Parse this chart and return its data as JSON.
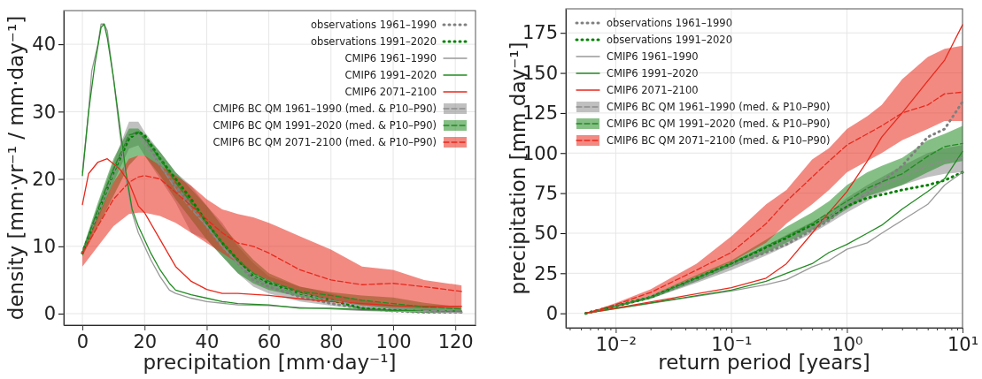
{
  "chart_data": [
    {
      "type": "line",
      "xlabel": "precipitation [mm·day⁻¹]",
      "ylabel": "density [mm·yr⁻¹ / mm·day⁻¹]",
      "xlim": [
        -6,
        126.5
      ],
      "ylim": [
        -1.7,
        45
      ],
      "xticks": [
        0,
        20,
        40,
        60,
        80,
        100,
        120
      ],
      "yticks": [
        0,
        10,
        20,
        30,
        40
      ],
      "grid": true,
      "legend": "top right",
      "series": [
        {
          "name": "observations 1961–1990",
          "color": "#808080",
          "line_style": "dotted",
          "x": [
            0,
            5,
            10,
            15,
            18,
            20,
            25,
            30,
            35,
            40,
            45,
            50,
            55,
            60,
            70,
            80,
            90,
            100,
            110,
            122
          ],
          "values": [
            9,
            15,
            21,
            26.5,
            27,
            26,
            22,
            19,
            16,
            13,
            10,
            7.5,
            5,
            4,
            2.5,
            1.5,
            0.8,
            0.4,
            0.2,
            0.2
          ]
        },
        {
          "name": "observations 1991–2020",
          "color": "#008000",
          "line_style": "dotted",
          "x": [
            0,
            5,
            10,
            15,
            18,
            20,
            25,
            30,
            35,
            40,
            45,
            50,
            55,
            60,
            70,
            80,
            90,
            100,
            110,
            122
          ],
          "values": [
            9,
            15,
            21,
            26,
            27,
            26.5,
            23,
            20,
            17,
            13.5,
            10.5,
            8,
            5.5,
            4.5,
            3,
            2,
            0.8,
            0.5,
            0.3,
            0.3
          ]
        },
        {
          "name": "CMIP6 1961–1990",
          "color": "#999999",
          "line_style": "solid",
          "x": [
            0,
            2,
            3,
            5,
            6,
            7,
            8,
            10,
            12,
            14,
            16,
            18,
            20,
            22,
            25,
            28,
            30,
            35,
            40,
            50,
            60,
            70,
            80,
            90,
            100,
            110,
            122
          ],
          "values": [
            21,
            30,
            36,
            40,
            43,
            43,
            42,
            35,
            27,
            20,
            15,
            12,
            10,
            8,
            5.5,
            3.5,
            3,
            2.3,
            1.8,
            1.3,
            1.2,
            0.9,
            0.7,
            0.5,
            0.4,
            0.3,
            0.2
          ]
        },
        {
          "name": "CMIP6 1991–2020",
          "color": "#228b22",
          "line_style": "solid",
          "x": [
            0,
            2,
            4,
            6,
            7,
            8,
            10,
            12,
            14,
            16,
            18,
            20,
            22,
            25,
            28,
            30,
            35,
            40,
            45,
            50,
            60,
            70,
            80,
            90,
            100,
            110,
            122
          ],
          "values": [
            20.5,
            30,
            37,
            42.5,
            43,
            41,
            35,
            28,
            21,
            15.5,
            13,
            11,
            9,
            6.5,
            4.5,
            3.5,
            2.8,
            2.3,
            1.8,
            1.5,
            1.3,
            0.8,
            0.8,
            0.6,
            0.5,
            0.5,
            0.4
          ]
        },
        {
          "name": "CMIP6 2071–2100",
          "color": "#e8291c",
          "line_style": "solid",
          "x": [
            0,
            2,
            5,
            8,
            12,
            15,
            18,
            20,
            25,
            30,
            35,
            40,
            45,
            50,
            60,
            70,
            80,
            90,
            100,
            110,
            122
          ],
          "values": [
            16.2,
            20.8,
            22.5,
            23,
            21.5,
            19.5,
            16,
            15,
            11,
            7,
            4.8,
            3.6,
            3,
            3,
            2.7,
            2.2,
            1.8,
            1.5,
            1.2,
            1.1,
            1.1
          ]
        },
        {
          "name": "CMIP6 BC QM 1961–1990 (med. & P10–P90)",
          "color": "#8c8c8c",
          "line_style": "dashed",
          "x": [
            0,
            5,
            10,
            15,
            18,
            20,
            25,
            30,
            35,
            40,
            45,
            50,
            55,
            60,
            70,
            80,
            90,
            100,
            110,
            122
          ],
          "values": [
            9,
            15,
            21,
            26.5,
            26.5,
            25,
            22,
            18.5,
            15.5,
            13,
            10,
            7.5,
            5.5,
            4.3,
            3,
            2,
            1.2,
            0.8,
            0.5,
            0.4
          ],
          "lower": [
            8.5,
            14,
            19.5,
            24.5,
            25,
            23.5,
            20,
            16.5,
            12,
            11,
            8.5,
            6,
            4,
            3,
            1.8,
            1.2,
            0.6,
            0.3,
            0.2,
            0.1
          ],
          "upper": [
            9.5,
            16,
            22.5,
            28.5,
            28.5,
            27,
            24,
            21,
            19,
            16,
            13.5,
            10,
            7.5,
            5.5,
            4,
            3,
            2,
            1.3,
            1,
            0.8
          ]
        },
        {
          "name": "CMIP6 BC QM 1991–2020 (med. & P10–P90)",
          "color": "#228b22",
          "line_style": "dashed",
          "x": [
            0,
            5,
            10,
            15,
            18,
            20,
            25,
            30,
            35,
            40,
            45,
            50,
            55,
            60,
            70,
            80,
            90,
            100,
            110,
            122
          ],
          "values": [
            9,
            15.5,
            21.5,
            26.5,
            27,
            26,
            23,
            19.5,
            16.5,
            13.5,
            10.5,
            8,
            6,
            4.8,
            3.3,
            2.7,
            2,
            1.5,
            1,
            0.7
          ],
          "lower": [
            8.5,
            13,
            17.5,
            22,
            23.5,
            23.5,
            20.5,
            17,
            14,
            11,
            8.5,
            6,
            4.5,
            3.5,
            2.5,
            1.8,
            1.2,
            0.7,
            0.4,
            0.3
          ],
          "upper": [
            9.5,
            16.5,
            23,
            27.5,
            27.5,
            26.5,
            24,
            21,
            18.5,
            16,
            13,
            10.5,
            8,
            6,
            4,
            3.2,
            2.7,
            2.4,
            1.6,
            1
          ]
        },
        {
          "name": "CMIP6 BC QM 2071–2100 (med. & P10–P90)",
          "color": "#e8291c",
          "line_style": "dashed",
          "x": [
            0,
            5,
            10,
            15,
            18,
            20,
            25,
            30,
            35,
            40,
            45,
            50,
            55,
            60,
            70,
            80,
            90,
            100,
            110,
            122
          ],
          "values": [
            9,
            13,
            17,
            19.5,
            20.3,
            20.5,
            20,
            18,
            16,
            14,
            12,
            10.5,
            10,
            9,
            6.5,
            5,
            4.3,
            4.5,
            4,
            3.3
          ],
          "lower": [
            7,
            10,
            13,
            14.8,
            15,
            15,
            14.5,
            13.5,
            12,
            10.5,
            9,
            7.5,
            6,
            5,
            3,
            2,
            1.3,
            1,
            0.8,
            0.8
          ],
          "upper": [
            9,
            14.5,
            19.5,
            23,
            23.5,
            23.5,
            22,
            20.5,
            19,
            17,
            15.5,
            14.8,
            14.3,
            13.5,
            11.5,
            9.5,
            7,
            6.5,
            5,
            4.2
          ]
        }
      ]
    },
    {
      "type": "line",
      "xlabel": "return period [years]",
      "ylabel": "precipitation [mm day⁻¹]",
      "log": "x",
      "xlim": [
        0.0037,
        10
      ],
      "ylim": [
        -9,
        190
      ],
      "xticks": [
        {
          "value": 0.004,
          "label": null
        },
        {
          "value": 0.005,
          "label": null
        },
        {
          "value": 0.006,
          "label": null
        },
        {
          "value": 0.007,
          "label": null
        },
        {
          "value": 0.008,
          "label": null
        },
        {
          "value": 0.009,
          "label": null
        },
        {
          "value": 0.01,
          "label": "10⁻²"
        },
        {
          "value": 0.02,
          "label": null
        },
        {
          "value": 0.03,
          "label": null
        },
        {
          "value": 0.04,
          "label": null
        },
        {
          "value": 0.05,
          "label": null
        },
        {
          "value": 0.06,
          "label": null
        },
        {
          "value": 0.07,
          "label": null
        },
        {
          "value": 0.08,
          "label": null
        },
        {
          "value": 0.09,
          "label": null
        },
        {
          "value": 0.1,
          "label": "10⁻¹"
        },
        {
          "value": 0.2,
          "label": null
        },
        {
          "value": 0.3,
          "label": null
        },
        {
          "value": 0.4,
          "label": null
        },
        {
          "value": 0.5,
          "label": null
        },
        {
          "value": 0.6,
          "label": null
        },
        {
          "value": 0.7,
          "label": null
        },
        {
          "value": 0.8,
          "label": null
        },
        {
          "value": 0.9,
          "label": null
        },
        {
          "value": 1,
          "label": "10⁰"
        },
        {
          "value": 2,
          "label": null
        },
        {
          "value": 3,
          "label": null
        },
        {
          "value": 4,
          "label": null
        },
        {
          "value": 5,
          "label": null
        },
        {
          "value": 6,
          "label": null
        },
        {
          "value": 7,
          "label": null
        },
        {
          "value": 8,
          "label": null
        },
        {
          "value": 9,
          "label": null
        },
        {
          "value": 10,
          "label": "10¹"
        }
      ],
      "yticks": [
        0,
        25,
        50,
        75,
        100,
        125,
        150,
        175
      ],
      "grid": true,
      "legend": "top left",
      "series": [
        {
          "name": "observations 1961–1990",
          "color": "#808080",
          "line_style": "dotted",
          "x": [
            0.0055,
            0.01,
            0.02,
            0.05,
            0.1,
            0.2,
            0.3,
            0.5,
            0.7,
            1,
            1.5,
            2,
            3,
            5,
            7,
            10
          ],
          "values": [
            0,
            4.5,
            10,
            21,
            30,
            38,
            43,
            52,
            58,
            67,
            75,
            82,
            92,
            110,
            115,
            132
          ]
        },
        {
          "name": "observations 1991–2020",
          "color": "#008000",
          "line_style": "dotted",
          "x": [
            0.0055,
            0.01,
            0.02,
            0.05,
            0.1,
            0.2,
            0.3,
            0.5,
            0.7,
            1,
            1.5,
            2,
            3,
            5,
            7,
            10
          ],
          "values": [
            0,
            4.5,
            10,
            22,
            31,
            41,
            47,
            55,
            60,
            67,
            72,
            74,
            77,
            80,
            83,
            88
          ]
        },
        {
          "name": "CMIP6 1961–1990",
          "color": "#999999",
          "line_style": "solid",
          "x": [
            0.0055,
            0.1,
            0.2,
            0.3,
            0.5,
            0.7,
            1,
            1.5,
            2,
            3,
            5,
            7,
            10
          ],
          "values": [
            0,
            14,
            18,
            21,
            29,
            33,
            40,
            44,
            50,
            58,
            68,
            80,
            88
          ]
        },
        {
          "name": "CMIP6 1991–2020",
          "color": "#228b22",
          "line_style": "solid",
          "x": [
            0.0055,
            0.1,
            0.2,
            0.3,
            0.5,
            0.7,
            1,
            1.5,
            2,
            3,
            5,
            7,
            10
          ],
          "values": [
            0,
            14.5,
            20,
            25,
            31,
            38,
            43,
            50,
            55,
            65,
            76,
            84,
            101
          ]
        },
        {
          "name": "CMIP6 2071–2100",
          "color": "#e8291c",
          "line_style": "solid",
          "x": [
            0.0055,
            0.1,
            0.2,
            0.3,
            0.5,
            0.7,
            1,
            1.5,
            2,
            3,
            5,
            7,
            10
          ],
          "values": [
            0,
            16,
            22,
            31,
            50,
            63,
            76,
            95,
            110,
            125,
            145,
            158,
            180
          ]
        },
        {
          "name": "CMIP6 BC QM 1961–1990 (med. & P10–P90)",
          "color": "#8c8c8c",
          "line_style": "dashed",
          "x": [
            0.0055,
            0.01,
            0.02,
            0.05,
            0.1,
            0.2,
            0.3,
            0.5,
            0.7,
            1,
            1.5,
            2,
            3,
            5,
            7,
            10
          ],
          "values": [
            0,
            4.5,
            10,
            21,
            30,
            40,
            46,
            54,
            60,
            68,
            75,
            80,
            85,
            92,
            95,
            97
          ],
          "lower": [
            0,
            4,
            9,
            19,
            27,
            36,
            42,
            50,
            56,
            63,
            70,
            75,
            80,
            85,
            87,
            88
          ],
          "upper": [
            0,
            5,
            11,
            23,
            32,
            42,
            49,
            57,
            63,
            72,
            80,
            85,
            92,
            100,
            103,
            105
          ]
        },
        {
          "name": "CMIP6 BC QM 1991–2020 (med. & P10–P90)",
          "color": "#228b22",
          "line_style": "dashed",
          "x": [
            0.0055,
            0.01,
            0.02,
            0.05,
            0.1,
            0.2,
            0.3,
            0.5,
            0.7,
            1,
            1.5,
            2,
            3,
            5,
            7,
            10
          ],
          "values": [
            0,
            4.5,
            10,
            22,
            31,
            42,
            48,
            56,
            63,
            70,
            78,
            82,
            87,
            98,
            104,
            106
          ],
          "lower": [
            0,
            4,
            9,
            20,
            29,
            38,
            44,
            52,
            58,
            65,
            73,
            76,
            80,
            88,
            93,
            95
          ],
          "upper": [
            0,
            5,
            11,
            24,
            33,
            46,
            54,
            63,
            70,
            80,
            88,
            92,
            97,
            108,
            112,
            117
          ]
        },
        {
          "name": "CMIP6 BC QM 2071–2100 (med. & P10–P90)",
          "color": "#e8291c",
          "line_style": "dashed",
          "x": [
            0.0055,
            0.01,
            0.02,
            0.05,
            0.1,
            0.2,
            0.3,
            0.5,
            0.7,
            1,
            1.5,
            2,
            3,
            5,
            7,
            10
          ],
          "values": [
            0,
            5.5,
            13,
            27,
            38,
            56,
            70,
            85,
            95,
            105,
            112,
            117,
            125,
            130,
            137,
            138
          ],
          "lower": [
            0,
            5,
            11,
            23,
            32,
            44,
            56,
            68,
            77,
            88,
            95,
            100,
            108,
            115,
            120,
            120
          ],
          "upper": [
            0,
            6.5,
            15,
            31,
            48,
            68,
            77,
            96,
            103,
            115,
            123,
            130,
            146,
            160,
            165,
            167
          ]
        }
      ]
    }
  ]
}
